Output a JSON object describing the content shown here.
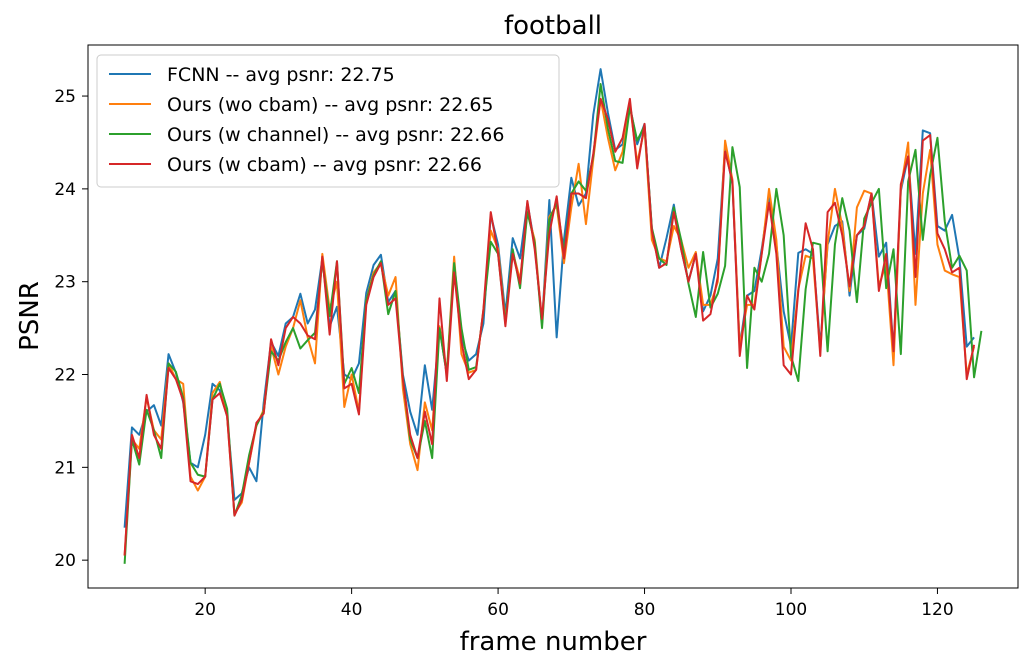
{
  "chart_data": {
    "type": "line",
    "title": "football",
    "xlabel": "frame number",
    "ylabel": "PSNR",
    "xlim": [
      4,
      131
    ],
    "ylim": [
      19.7,
      25.55
    ],
    "xticks": [
      20,
      40,
      60,
      80,
      100,
      120
    ],
    "yticks": [
      20,
      21,
      22,
      23,
      24,
      25
    ],
    "grid": false,
    "legend_position": "top-left",
    "x_start": 9,
    "series": [
      {
        "name": "FCNN -- avg psnr: 22.75",
        "color": "#1f77b4",
        "values": [
          20.35,
          21.43,
          21.35,
          21.6,
          21.67,
          21.45,
          22.22,
          22.02,
          21.7,
          21.05,
          21.0,
          21.35,
          21.9,
          21.83,
          21.55,
          20.65,
          20.72,
          21.0,
          20.85,
          21.7,
          22.35,
          22.2,
          22.55,
          22.62,
          22.87,
          22.55,
          22.7,
          23.25,
          22.52,
          22.73,
          22.0,
          21.95,
          22.12,
          22.88,
          23.18,
          23.29,
          22.78,
          22.9,
          22.0,
          21.6,
          21.35,
          22.1,
          21.62,
          22.5,
          22.0,
          23.17,
          22.4,
          22.15,
          22.22,
          22.55,
          23.72,
          23.4,
          22.65,
          23.47,
          23.25,
          23.85,
          23.4,
          22.55,
          23.88,
          22.4,
          23.45,
          24.12,
          23.82,
          23.95,
          24.8,
          25.29,
          24.82,
          24.42,
          24.48,
          24.9,
          24.48,
          24.7,
          23.57,
          23.15,
          23.47,
          23.83,
          23.35,
          23.0,
          23.3,
          22.68,
          22.85,
          23.25,
          24.45,
          24.05,
          22.3,
          22.85,
          22.9,
          23.35,
          23.9,
          23.4,
          22.68,
          22.3,
          23.31,
          23.35,
          23.3,
          22.3,
          23.4,
          23.6,
          23.65,
          22.85,
          23.5,
          23.57,
          23.95,
          23.27,
          23.42,
          22.25,
          23.98,
          24.35,
          23.3,
          24.63,
          24.6,
          23.6,
          23.55,
          23.72,
          23.25,
          22.3,
          22.4
        ]
      },
      {
        "name": "Ours (wo cbam) -- avg psnr: 22.65",
        "color": "#ff7f0e",
        "values": [
          20.05,
          21.3,
          21.2,
          21.75,
          21.4,
          21.3,
          22.12,
          21.95,
          21.9,
          20.9,
          20.75,
          20.9,
          21.8,
          21.92,
          21.55,
          20.5,
          20.62,
          21.05,
          21.45,
          21.62,
          22.3,
          22.0,
          22.3,
          22.5,
          22.8,
          22.4,
          22.12,
          23.3,
          22.7,
          23.0,
          21.65,
          22.0,
          21.6,
          22.8,
          23.1,
          23.2,
          22.85,
          23.05,
          21.85,
          21.25,
          20.97,
          21.7,
          21.4,
          22.52,
          22.02,
          23.27,
          22.22,
          22.02,
          22.05,
          22.7,
          23.55,
          23.35,
          22.57,
          23.32,
          23.02,
          23.75,
          23.45,
          22.55,
          23.7,
          23.82,
          23.2,
          23.8,
          24.27,
          23.62,
          24.32,
          24.97,
          24.55,
          24.2,
          24.4,
          24.92,
          24.28,
          24.65,
          23.45,
          23.25,
          23.22,
          23.6,
          23.45,
          23.15,
          23.32,
          22.75,
          22.75,
          23.0,
          24.52,
          24.1,
          22.3,
          22.75,
          22.75,
          23.3,
          24.0,
          23.45,
          22.3,
          22.15,
          22.92,
          23.28,
          23.25,
          22.25,
          23.42,
          24.0,
          23.6,
          22.9,
          23.8,
          23.98,
          23.95,
          22.95,
          23.2,
          22.1,
          24.0,
          24.5,
          22.75,
          23.95,
          24.42,
          23.4,
          23.12,
          23.08,
          23.05,
          22.0,
          22.3
        ]
      },
      {
        "name": "Ours (w channel) -- avg psnr: 22.66",
        "color": "#2ca02c",
        "values": [
          19.96,
          21.3,
          21.03,
          21.62,
          21.4,
          21.1,
          22.12,
          22.03,
          21.75,
          21.05,
          20.92,
          20.9,
          21.73,
          21.9,
          21.63,
          20.48,
          20.7,
          21.13,
          21.45,
          21.6,
          22.25,
          22.15,
          22.35,
          22.5,
          22.28,
          22.37,
          22.45,
          23.23,
          22.63,
          23.22,
          21.9,
          22.07,
          21.8,
          22.8,
          23.07,
          23.22,
          22.65,
          22.9,
          21.97,
          21.3,
          21.1,
          21.5,
          21.1,
          22.5,
          22.0,
          23.2,
          22.5,
          22.05,
          22.08,
          22.68,
          23.43,
          23.3,
          22.55,
          23.35,
          22.93,
          23.75,
          23.42,
          22.5,
          23.67,
          23.85,
          23.32,
          23.95,
          24.08,
          23.98,
          24.35,
          25.13,
          24.65,
          24.3,
          24.28,
          24.88,
          24.52,
          24.68,
          23.58,
          23.25,
          23.18,
          23.8,
          23.45,
          22.98,
          22.62,
          23.32,
          22.72,
          22.87,
          23.17,
          24.45,
          24.02,
          22.07,
          23.15,
          23.0,
          23.3,
          24.0,
          23.5,
          22.2,
          21.93,
          22.92,
          23.42,
          23.4,
          22.25,
          23.4,
          23.9,
          23.55,
          22.78,
          23.68,
          23.85,
          24.0,
          22.93,
          23.35,
          22.22,
          24.08,
          24.42,
          23.45,
          24.15,
          24.55,
          23.65,
          23.15,
          23.28,
          23.12,
          21.97,
          22.47
        ]
      },
      {
        "name": "Ours (w cbam) -- avg psnr: 22.66",
        "color": "#d62728",
        "values": [
          20.05,
          21.35,
          21.1,
          21.78,
          21.35,
          21.2,
          22.07,
          21.95,
          21.72,
          20.85,
          20.82,
          20.9,
          21.73,
          21.8,
          21.55,
          20.48,
          20.65,
          21.05,
          21.48,
          21.58,
          22.38,
          22.1,
          22.5,
          22.62,
          22.55,
          22.42,
          22.38,
          23.27,
          22.43,
          23.22,
          21.85,
          21.9,
          21.57,
          22.75,
          23.05,
          23.2,
          22.75,
          22.82,
          21.95,
          21.35,
          21.1,
          21.6,
          21.25,
          22.82,
          21.93,
          23.1,
          22.35,
          21.95,
          22.05,
          22.7,
          23.75,
          23.3,
          22.52,
          23.3,
          22.98,
          23.87,
          23.35,
          22.6,
          23.52,
          23.92,
          23.25,
          23.95,
          23.95,
          23.9,
          24.38,
          24.97,
          24.75,
          24.4,
          24.55,
          24.97,
          24.22,
          24.7,
          23.55,
          23.15,
          23.2,
          23.75,
          23.35,
          23.0,
          23.3,
          22.58,
          22.65,
          23.05,
          24.4,
          24.08,
          22.2,
          22.85,
          22.7,
          23.3,
          23.85,
          23.3,
          22.1,
          22.0,
          22.9,
          23.63,
          23.35,
          22.2,
          23.75,
          23.85,
          23.5,
          22.95,
          23.5,
          23.6,
          23.95,
          22.9,
          23.3,
          22.25,
          24.05,
          24.35,
          23.05,
          24.52,
          24.58,
          23.52,
          23.35,
          23.1,
          23.15,
          21.95,
          22.32
        ]
      }
    ]
  }
}
